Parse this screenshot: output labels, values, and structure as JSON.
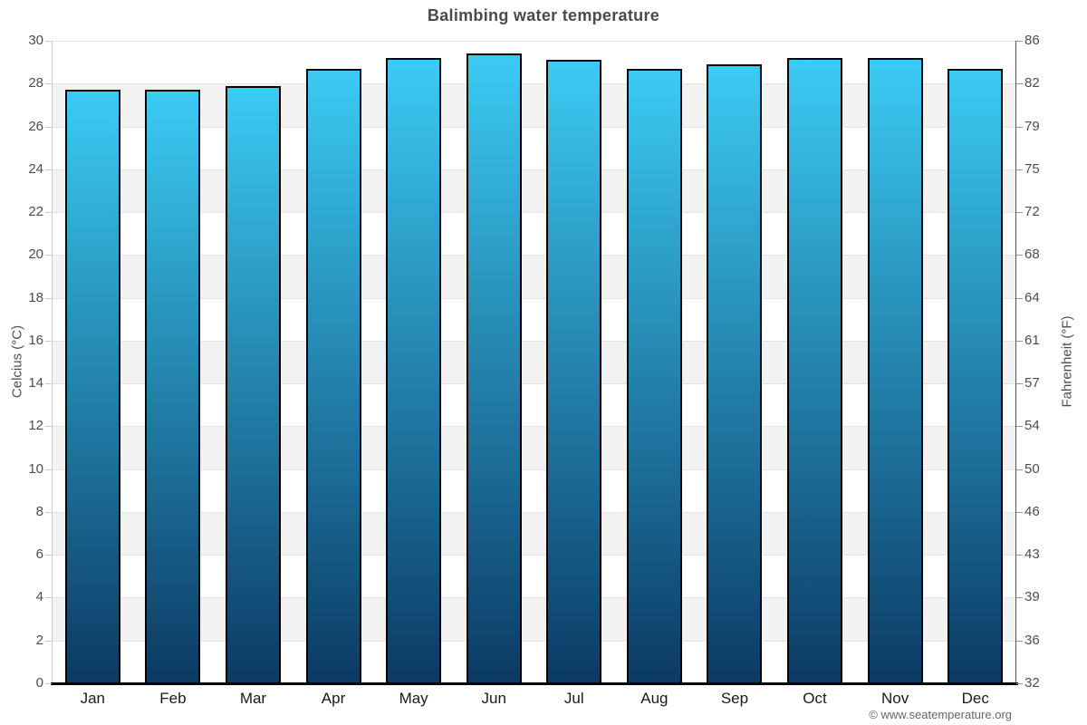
{
  "title": "Balimbing water temperature",
  "footer": {
    "credit": "© www.seatemperature.org"
  },
  "chart_data": {
    "type": "bar",
    "title": "Balimbing water temperature",
    "categories": [
      "Jan",
      "Feb",
      "Mar",
      "Apr",
      "May",
      "Jun",
      "Jul",
      "Aug",
      "Sep",
      "Oct",
      "Nov",
      "Dec"
    ],
    "values": [
      27.7,
      27.7,
      27.9,
      28.7,
      29.2,
      29.4,
      29.1,
      28.7,
      28.9,
      29.2,
      29.2,
      28.7
    ],
    "unit": "°C",
    "ylabel_left": "Celcius (°C)",
    "ylabel_right": "Fahrenheit (°F)",
    "ylim": [
      0,
      30
    ],
    "yticks_left": [
      0,
      2,
      4,
      6,
      8,
      10,
      12,
      14,
      16,
      18,
      20,
      22,
      24,
      26,
      28,
      30
    ],
    "yticks_right": [
      32,
      36,
      39,
      43,
      46,
      50,
      54,
      57,
      61,
      64,
      68,
      72,
      75,
      79,
      82,
      86
    ],
    "grid": "alternating-horizontal-bands",
    "legend": "none",
    "colors": {
      "bar_top": "#3bcbf4",
      "bar_bottom": "#0b3a64",
      "bar_border": "#000000",
      "band_fill": "#f2f2f2",
      "gridline": "#e4e4e4",
      "axis_left": "#cccccc",
      "axis_right": "#555555",
      "axis_bottom": "#000000",
      "tick_mark_left": "#cccccc",
      "tick_mark_right": "#999999",
      "title_color": "#4a4a4a",
      "tick_label_color": "#4d4d4d",
      "month_label_color": "#1a1a1a",
      "credit_color": "#666666"
    }
  }
}
